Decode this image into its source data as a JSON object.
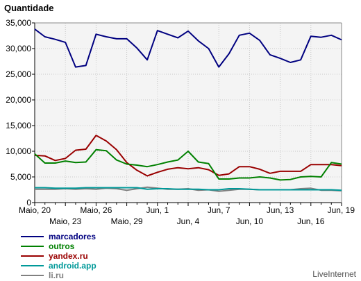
{
  "chart_data": {
    "type": "line",
    "title": "",
    "ylabel": "Quantidade",
    "xlabel": "",
    "ylim": [
      0,
      35000
    ],
    "yticks": [
      0,
      5000,
      10000,
      15000,
      20000,
      25000,
      30000,
      35000
    ],
    "ytick_labels": [
      "0",
      "5,000",
      "10,000",
      "15,000",
      "20,000",
      "25,000",
      "30,000",
      "35,000"
    ],
    "x": [
      "Maio, 20",
      "Maio, 21",
      "Maio, 22",
      "Maio, 23",
      "Maio, 24",
      "Maio, 25",
      "Maio, 26",
      "Maio, 27",
      "Maio, 28",
      "Maio, 29",
      "Maio, 30",
      "Maio, 31",
      "Jun, 1",
      "Jun, 2",
      "Jun, 3",
      "Jun, 4",
      "Jun, 5",
      "Jun, 6",
      "Jun, 7",
      "Jun, 8",
      "Jun, 9",
      "Jun, 10",
      "Jun, 11",
      "Jun, 12",
      "Jun, 13",
      "Jun, 14",
      "Jun, 15",
      "Jun, 16",
      "Jun, 17",
      "Jun, 18",
      "Jun, 19"
    ],
    "xtick_labels_top": [
      "Maio, 20",
      "Maio, 26",
      "Jun, 1",
      "Jun, 7",
      "Jun, 13",
      "Jun, 19"
    ],
    "xtick_labels_bottom": [
      "Maio, 23",
      "Maio, 29",
      "Jun, 4",
      "Jun, 10",
      "Jun, 16"
    ],
    "grid": true,
    "legend_position": "bottom-left",
    "series": [
      {
        "name": "marcadores",
        "color": "#000080",
        "values": [
          33800,
          32300,
          31800,
          31200,
          26400,
          26700,
          32800,
          32300,
          31900,
          31900,
          30100,
          27800,
          33500,
          32800,
          32100,
          33400,
          31500,
          30000,
          26400,
          29000,
          32600,
          33000,
          31600,
          28800,
          28100,
          27300,
          27800,
          32400,
          32200,
          32600,
          31700
        ]
      },
      {
        "name": "outros",
        "color": "#008000",
        "values": [
          9500,
          7700,
          7700,
          8100,
          7800,
          7900,
          10300,
          10100,
          8300,
          7500,
          7300,
          7000,
          7400,
          7900,
          8300,
          10000,
          7900,
          7600,
          4600,
          4600,
          4800,
          4800,
          5000,
          4800,
          4400,
          4500,
          5000,
          5100,
          5000,
          7800,
          7500
        ]
      },
      {
        "name": "yandex.ru",
        "color": "#990000",
        "values": [
          9200,
          9100,
          8200,
          8600,
          10200,
          10400,
          13100,
          12000,
          10300,
          7800,
          6300,
          5200,
          5900,
          6500,
          6800,
          6600,
          6800,
          6400,
          5300,
          5600,
          7000,
          7000,
          6500,
          5700,
          6100,
          6100,
          6100,
          7400,
          7400,
          7400,
          7200
        ]
      },
      {
        "name": "android.app",
        "color": "#009999",
        "values": [
          2900,
          2900,
          2800,
          2800,
          2800,
          2900,
          2900,
          2900,
          2900,
          2900,
          2900,
          2600,
          2700,
          2700,
          2600,
          2600,
          2600,
          2500,
          2500,
          2700,
          2700,
          2600,
          2500,
          2500,
          2500,
          2500,
          2500,
          2500,
          2500,
          2500,
          2400
        ]
      },
      {
        "name": "li.ru",
        "color": "#808080",
        "values": [
          2600,
          2600,
          2600,
          2700,
          2600,
          2700,
          2600,
          2800,
          2700,
          2400,
          2700,
          3000,
          2800,
          2600,
          2600,
          2700,
          2400,
          2500,
          2200,
          2400,
          2600,
          2600,
          2500,
          2500,
          2500,
          2500,
          2700,
          2800,
          2400,
          2400,
          2300
        ]
      }
    ]
  },
  "branding": {
    "text": "LiveInternet"
  }
}
